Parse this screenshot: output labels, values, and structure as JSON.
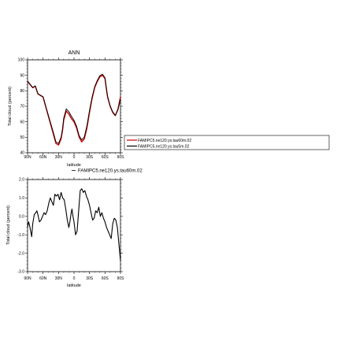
{
  "chart_data": [
    {
      "type": "line",
      "title": "ANN",
      "xlabel": "latitude",
      "ylabel": "Total cloud (percent)",
      "x_tick_labels": [
        "90N",
        "60N",
        "30N",
        "0",
        "30S",
        "60S",
        "90S"
      ],
      "y_tick_labels": [
        "40",
        "50",
        "60",
        "70",
        "80",
        "90",
        "100"
      ],
      "xlim": [
        90,
        -90
      ],
      "ylim": [
        40,
        100
      ],
      "x": [
        90,
        85,
        80,
        75,
        70,
        65,
        60,
        55,
        50,
        45,
        40,
        35,
        30,
        25,
        22,
        20,
        15,
        10,
        5,
        0,
        -5,
        -10,
        -15,
        -20,
        -25,
        -30,
        -35,
        -40,
        -45,
        -50,
        -55,
        -60,
        -62,
        -65,
        -70,
        -75,
        -80,
        -85,
        -90
      ],
      "series": [
        {
          "name": "FAMIPC5.ne120.ys.tau60m.02",
          "color": "#cc0000",
          "values": [
            86,
            84,
            82,
            83,
            78,
            77,
            76,
            70,
            64,
            58,
            52,
            46,
            45,
            49,
            55,
            61,
            67,
            65,
            62,
            60,
            56,
            50,
            47,
            49,
            56,
            66,
            75,
            82,
            86,
            89,
            90,
            88,
            83,
            76,
            70,
            66,
            64,
            68,
            76
          ]
        },
        {
          "name": "FAMIPC5.ne120.ys.tau5m.02",
          "color": "#000000",
          "values": [
            86.3,
            84.2,
            82.1,
            83.2,
            78.2,
            77.1,
            76.2,
            70.4,
            64.6,
            58.9,
            53.1,
            47.0,
            46.0,
            50.1,
            56.2,
            62.3,
            68.4,
            66.5,
            63.6,
            61.0,
            57.1,
            51.0,
            48.3,
            50.3,
            57.5,
            67.2,
            75.9,
            82.6,
            86.7,
            89.7,
            90.8,
            88.5,
            83.4,
            76.5,
            70.3,
            66.4,
            64.2,
            67.6,
            74.5
          ]
        }
      ],
      "legend": {
        "placement": "right",
        "entries": [
          "FAMIPC5.ne120.ys.tau60m.02",
          "FAMIPC5.ne120.ys.tau5m.02"
        ]
      }
    },
    {
      "type": "line",
      "subtitle": "FAMIPC5.ne120.ys.tau60m.02",
      "xlabel": "latitude",
      "ylabel": "Total cloud (percent)",
      "x_tick_labels": [
        "90N",
        "60N",
        "30N",
        "0",
        "30S",
        "60S",
        "90S"
      ],
      "y_tick_labels": [
        "-3.0",
        "-2.0",
        "-1.0",
        "0.0",
        "1.0",
        "2.0"
      ],
      "xlim": [
        90,
        -90
      ],
      "ylim": [
        -3,
        2
      ],
      "x": [
        90,
        88,
        86,
        84,
        82,
        80,
        77,
        74,
        72,
        70,
        67,
        64,
        61,
        58,
        55,
        52,
        49,
        46,
        43,
        40,
        37,
        34,
        31,
        28,
        25,
        22,
        19,
        16,
        13,
        10,
        8,
        6,
        4,
        2,
        0,
        -3,
        -6,
        -9,
        -12,
        -15,
        -18,
        -21,
        -24,
        -27,
        -30,
        -33,
        -36,
        -39,
        -42,
        -45,
        -48,
        -51,
        -54,
        -57,
        -60,
        -63,
        -66,
        -69,
        -72,
        -75,
        -78,
        -81,
        -84,
        -87,
        -90
      ],
      "series": [
        {
          "name": "FAMIPC5.ne120.ys.tau60m.02",
          "color": "#000000",
          "values": [
            -0.6,
            -0.3,
            -0.5,
            -0.8,
            -1.1,
            -0.4,
            0.1,
            0.2,
            0.3,
            0.1,
            -0.3,
            -0.2,
            0.0,
            0.2,
            0.1,
            0.3,
            0.7,
            1.0,
            0.8,
            0.6,
            1.2,
            1.1,
            1.2,
            0.9,
            1.3,
            1.0,
            0.9,
            0.4,
            -0.2,
            -0.6,
            -0.3,
            0.1,
            0.4,
            0.0,
            -0.3,
            -1.0,
            -0.8,
            0.3,
            1.4,
            1.5,
            1.3,
            1.4,
            1.1,
            0.9,
            0.6,
            0.2,
            -0.2,
            -0.1,
            0.3,
            0.2,
            0.5,
            0.0,
            0.2,
            -0.1,
            -0.3,
            -0.6,
            -0.8,
            -1.0,
            -1.2,
            -0.4,
            -0.1,
            -0.2,
            -0.6,
            -1.5,
            -2.4
          ]
        }
      ]
    }
  ]
}
